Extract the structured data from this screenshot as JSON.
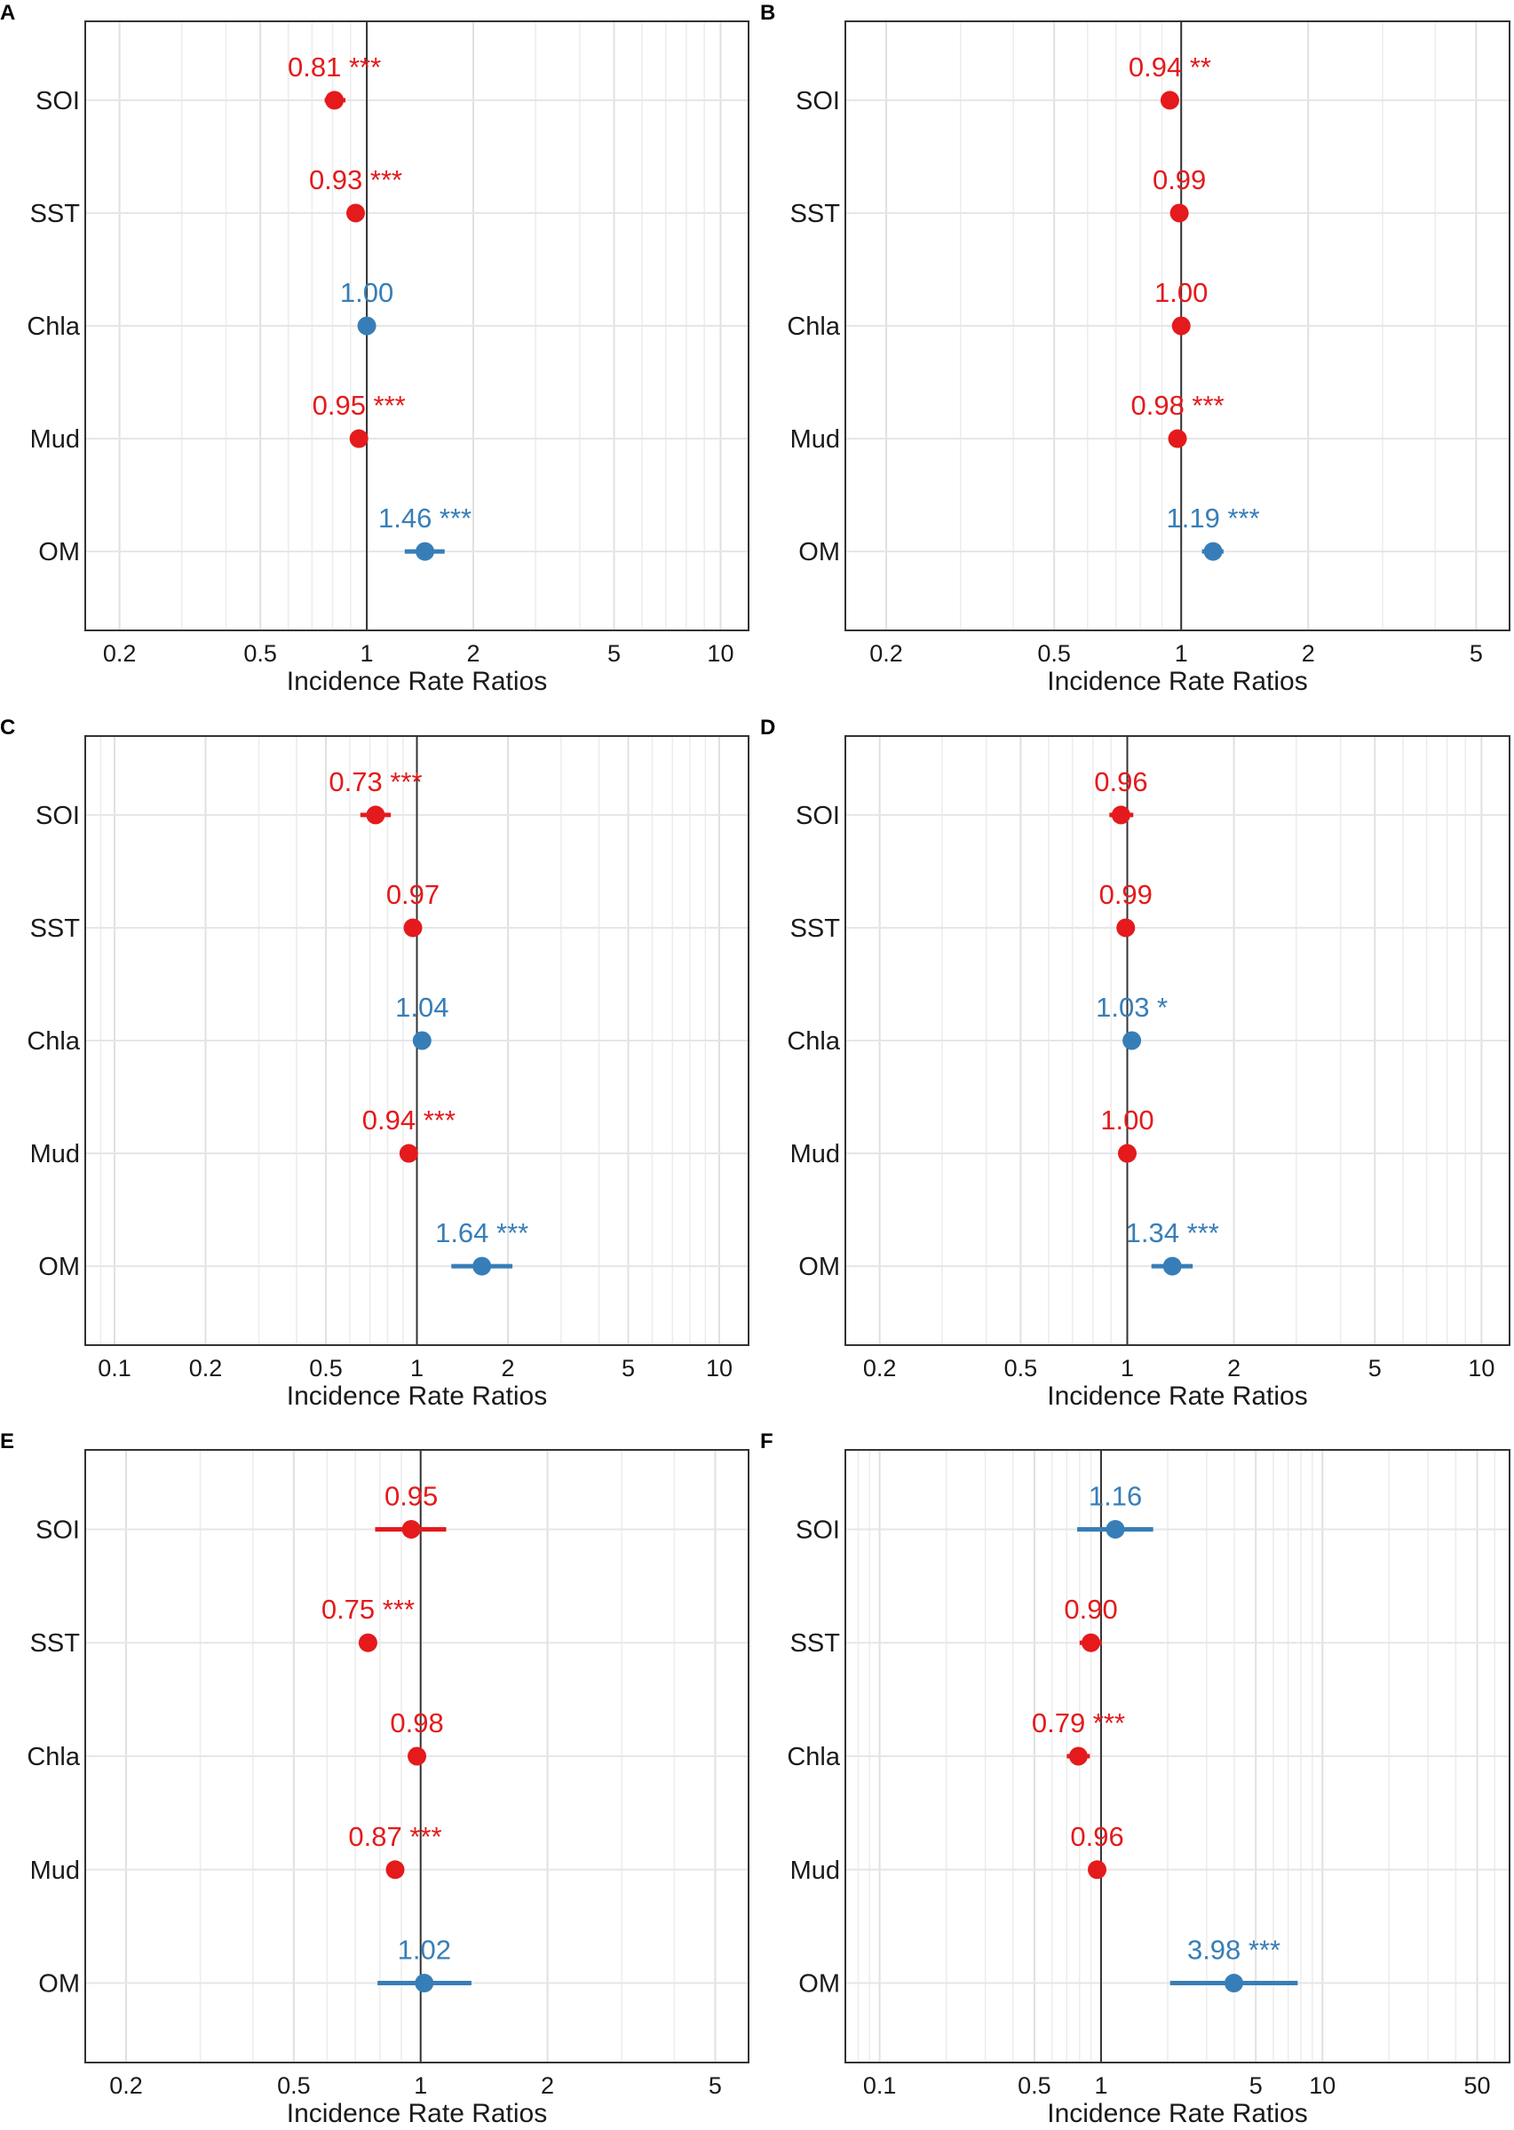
{
  "figure": {
    "xlabel": "Incidence Rate Ratios",
    "terms": [
      "SOI",
      "SST",
      "Chla",
      "Mud",
      "OM"
    ],
    "colors": {
      "negative": "#e41a1c",
      "positive": "#377eb8"
    }
  },
  "chart_data": [
    {
      "panel": "A",
      "type": "forest",
      "xscale": "log",
      "xlim": [
        0.16,
        12.0
      ],
      "ticks": [
        0.2,
        0.5,
        1,
        2,
        5,
        10
      ],
      "tick_labels": [
        "0.2",
        "0.5",
        "1",
        "2",
        "5",
        "10"
      ],
      "reference_line": 1,
      "xlabel": "Incidence Rate Ratios",
      "points": [
        {
          "term": "SOI",
          "estimate": 0.81,
          "ci": [
            0.76,
            0.87
          ],
          "label": "0.81 ***",
          "direction": "negative"
        },
        {
          "term": "SST",
          "estimate": 0.93,
          "ci": [
            0.91,
            0.95
          ],
          "label": "0.93 ***",
          "direction": "negative"
        },
        {
          "term": "Chla",
          "estimate": 1.0,
          "ci": [
            0.99,
            1.01
          ],
          "label": "1.00",
          "direction": "positive"
        },
        {
          "term": "Mud",
          "estimate": 0.95,
          "ci": [
            0.94,
            0.96
          ],
          "label": "0.95 ***",
          "direction": "negative"
        },
        {
          "term": "OM",
          "estimate": 1.46,
          "ci": [
            1.28,
            1.66
          ],
          "label": "1.46 ***",
          "direction": "positive"
        }
      ]
    },
    {
      "panel": "B",
      "type": "forest",
      "xscale": "log",
      "xlim": [
        0.16,
        6.0
      ],
      "ticks": [
        0.2,
        0.5,
        1,
        2,
        5
      ],
      "tick_labels": [
        "0.2",
        "0.5",
        "1",
        "2",
        "5"
      ],
      "reference_line": 1,
      "xlabel": "Incidence Rate Ratios",
      "points": [
        {
          "term": "SOI",
          "estimate": 0.94,
          "ci": [
            0.9,
            0.98
          ],
          "label": "0.94 **",
          "direction": "negative"
        },
        {
          "term": "SST",
          "estimate": 0.99,
          "ci": [
            0.98,
            1.0
          ],
          "label": "0.99",
          "direction": "negative"
        },
        {
          "term": "Chla",
          "estimate": 1.0,
          "ci": [
            0.99,
            1.01
          ],
          "label": "1.00",
          "direction": "negative"
        },
        {
          "term": "Mud",
          "estimate": 0.98,
          "ci": [
            0.97,
            0.99
          ],
          "label": "0.98 ***",
          "direction": "negative"
        },
        {
          "term": "OM",
          "estimate": 1.19,
          "ci": [
            1.12,
            1.26
          ],
          "label": "1.19 ***",
          "direction": "positive"
        }
      ]
    },
    {
      "panel": "C",
      "type": "forest",
      "xscale": "log",
      "xlim": [
        0.08,
        12.5
      ],
      "ticks": [
        0.1,
        0.2,
        0.5,
        1,
        2,
        5,
        10
      ],
      "tick_labels": [
        "0.1",
        "0.2",
        "0.5",
        "1",
        "2",
        "5",
        "10"
      ],
      "reference_line": 1,
      "xlabel": "Incidence Rate Ratios",
      "points": [
        {
          "term": "SOI",
          "estimate": 0.73,
          "ci": [
            0.65,
            0.82
          ],
          "label": "0.73 ***",
          "direction": "negative"
        },
        {
          "term": "SST",
          "estimate": 0.97,
          "ci": [
            0.94,
            1.0
          ],
          "label": "0.97",
          "direction": "negative"
        },
        {
          "term": "Chla",
          "estimate": 1.04,
          "ci": [
            1.0,
            1.08
          ],
          "label": "1.04",
          "direction": "positive"
        },
        {
          "term": "Mud",
          "estimate": 0.94,
          "ci": [
            0.92,
            0.96
          ],
          "label": "0.94 ***",
          "direction": "negative"
        },
        {
          "term": "OM",
          "estimate": 1.64,
          "ci": [
            1.3,
            2.07
          ],
          "label": "1.64 ***",
          "direction": "positive"
        }
      ]
    },
    {
      "panel": "D",
      "type": "forest",
      "xscale": "log",
      "xlim": [
        0.16,
        12.0
      ],
      "ticks": [
        0.2,
        0.5,
        1,
        2,
        5,
        10
      ],
      "tick_labels": [
        "0.2",
        "0.5",
        "1",
        "2",
        "5",
        "10"
      ],
      "reference_line": 1,
      "xlabel": "Incidence Rate Ratios",
      "points": [
        {
          "term": "SOI",
          "estimate": 0.96,
          "ci": [
            0.89,
            1.04
          ],
          "label": "0.96",
          "direction": "negative"
        },
        {
          "term": "SST",
          "estimate": 0.99,
          "ci": [
            0.97,
            1.01
          ],
          "label": "0.99",
          "direction": "negative"
        },
        {
          "term": "Chla",
          "estimate": 1.03,
          "ci": [
            1.0,
            1.06
          ],
          "label": "1.03 *",
          "direction": "positive"
        },
        {
          "term": "Mud",
          "estimate": 1.0,
          "ci": [
            0.99,
            1.01
          ],
          "label": "1.00",
          "direction": "negative"
        },
        {
          "term": "OM",
          "estimate": 1.34,
          "ci": [
            1.17,
            1.53
          ],
          "label": "1.34 ***",
          "direction": "positive"
        }
      ]
    },
    {
      "panel": "E",
      "type": "forest",
      "xscale": "log",
      "xlim": [
        0.16,
        6.0
      ],
      "ticks": [
        0.2,
        0.5,
        1,
        2,
        5
      ],
      "tick_labels": [
        "0.2",
        "0.5",
        "1",
        "2",
        "5"
      ],
      "reference_line": 1,
      "xlabel": "Incidence Rate Ratios",
      "points": [
        {
          "term": "SOI",
          "estimate": 0.95,
          "ci": [
            0.78,
            1.15
          ],
          "label": "0.95",
          "direction": "negative"
        },
        {
          "term": "SST",
          "estimate": 0.75,
          "ci": [
            0.72,
            0.78
          ],
          "label": "0.75 ***",
          "direction": "negative"
        },
        {
          "term": "Chla",
          "estimate": 0.98,
          "ci": [
            0.95,
            1.01
          ],
          "label": "0.98",
          "direction": "negative"
        },
        {
          "term": "Mud",
          "estimate": 0.87,
          "ci": [
            0.85,
            0.89
          ],
          "label": "0.87 ***",
          "direction": "negative"
        },
        {
          "term": "OM",
          "estimate": 1.02,
          "ci": [
            0.79,
            1.32
          ],
          "label": "1.02",
          "direction": "positive"
        }
      ]
    },
    {
      "panel": "F",
      "type": "forest",
      "xscale": "log",
      "xlim": [
        0.07,
        70.0
      ],
      "ticks": [
        0.1,
        0.5,
        1,
        5,
        10,
        50
      ],
      "tick_labels": [
        "0.1",
        "0.5",
        "1",
        "5",
        "10",
        "50"
      ],
      "reference_line": 1,
      "xlabel": "Incidence Rate Ratios",
      "points": [
        {
          "term": "SOI",
          "estimate": 1.16,
          "ci": [
            0.78,
            1.72
          ],
          "label": "1.16",
          "direction": "positive"
        },
        {
          "term": "SST",
          "estimate": 0.9,
          "ci": [
            0.8,
            1.01
          ],
          "label": "0.90",
          "direction": "negative"
        },
        {
          "term": "Chla",
          "estimate": 0.79,
          "ci": [
            0.7,
            0.89
          ],
          "label": "0.79 ***",
          "direction": "negative"
        },
        {
          "term": "Mud",
          "estimate": 0.96,
          "ci": [
            0.9,
            1.02
          ],
          "label": "0.96",
          "direction": "negative"
        },
        {
          "term": "OM",
          "estimate": 3.98,
          "ci": [
            2.05,
            7.73
          ],
          "label": "3.98 ***",
          "direction": "positive"
        }
      ]
    }
  ]
}
